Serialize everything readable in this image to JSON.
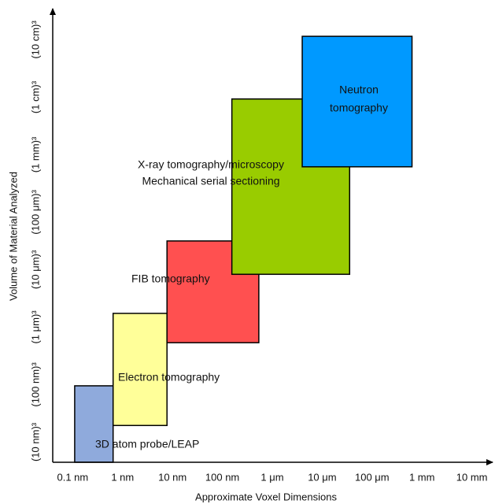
{
  "chart_data": {
    "type": "range-box",
    "x_label": "Approximate Voxel Dimensions",
    "y_label": "Volume of Material Analyzed",
    "xlim": [
      -0.4,
      8.4
    ],
    "ylim": [
      -0.35,
      7.5
    ],
    "xticks": [
      {
        "value": 0,
        "label": "0.1 nm"
      },
      {
        "value": 1,
        "label": "1 nm"
      },
      {
        "value": 2,
        "label": "10 nm"
      },
      {
        "value": 3,
        "label": "100 nm"
      },
      {
        "value": 4,
        "label": "1 μm"
      },
      {
        "value": 5,
        "label": "10 μm"
      },
      {
        "value": 6,
        "label": "100 μm"
      },
      {
        "value": 7,
        "label": "1 mm"
      },
      {
        "value": 8,
        "label": "10 mm"
      }
    ],
    "yticks": [
      {
        "value": 0,
        "label": "(10 nm)³"
      },
      {
        "value": 1,
        "label": "(100 nm)³"
      },
      {
        "value": 2,
        "label": "(1 μm)³"
      },
      {
        "value": 3,
        "label": "(10 μm)³"
      },
      {
        "value": 4,
        "label": "(100 μm)³"
      },
      {
        "value": 5,
        "label": "(1 mm)³"
      },
      {
        "value": 6,
        "label": "(1 cm)³"
      },
      {
        "value": 7,
        "label": "(10 cm)³"
      }
    ],
    "grid": false,
    "series": [
      {
        "lines": [
          "3D atom probe/LEAP"
        ],
        "color": "#8faadc",
        "x": [
          0.04,
          0.81
        ],
        "y": [
          -0.35,
          0.98
        ]
      },
      {
        "lines": [
          "Electron tomography"
        ],
        "color": "#ffff99",
        "x": [
          0.81,
          1.89
        ],
        "y": [
          0.29,
          2.24
        ]
      },
      {
        "lines": [
          "FIB tomography"
        ],
        "color": "#ff5050",
        "x": [
          1.89,
          3.73
        ],
        "y": [
          1.73,
          3.5
        ]
      },
      {
        "lines": [
          "X-ray tomography/microscopy",
          "Mechanical serial sectioning"
        ],
        "color": "#99cc00",
        "x": [
          3.19,
          5.55
        ],
        "y": [
          2.92,
          5.97
        ]
      },
      {
        "lines": [
          "Neutron",
          "tomography"
        ],
        "color": "#0099ff",
        "x": [
          4.6,
          6.8
        ],
        "y": [
          4.79,
          7.06
        ]
      }
    ]
  }
}
